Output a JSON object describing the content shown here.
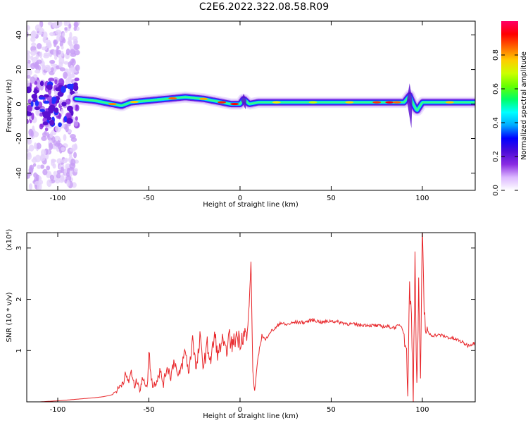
{
  "title": "C2E6.2022.322.08.58.R09",
  "spectrogram": {
    "type": "heatmap",
    "xlabel": "Height of straight line (km)",
    "ylabel": "Frequency (Hz)",
    "xlim": [
      -117,
      129
    ],
    "ylim": [
      -50,
      48
    ],
    "xticks": [
      -100,
      -50,
      0,
      50,
      100
    ],
    "yticks": [
      -40,
      -20,
      0,
      20,
      40
    ],
    "colorbar": {
      "label": "Normalized spectral amplitude",
      "range": [
        0,
        1
      ],
      "ticks": [
        "0.0",
        "0.2",
        "0.4",
        "0.6",
        "0.8"
      ],
      "tick_values": [
        0,
        0.2,
        0.4,
        0.6,
        0.8
      ],
      "colors": [
        "#ffffff",
        "#dcb8ff",
        "#8a2be2",
        "#4b0bd8",
        "#0000ff",
        "#00aaff",
        "#00ffff",
        "#00ff66",
        "#66ff00",
        "#ccff00",
        "#ffcc00",
        "#ff6600",
        "#ff0000",
        "#ff0066"
      ]
    }
  },
  "chart_data": [
    {
      "type": "heatmap",
      "title": "C2E6.2022.322.08.58.R09",
      "xlabel": "Height of straight line (km)",
      "ylabel": "Frequency (Hz)",
      "xlim": [
        -117,
        129
      ],
      "ylim": [
        -50,
        48
      ],
      "colorbar_label": "Normalized spectral amplitude",
      "ridge": {
        "x": [
          -117,
          -105,
          -95,
          -90,
          -80,
          -70,
          -65,
          -60,
          -50,
          -40,
          -30,
          -20,
          -10,
          -5,
          0,
          2,
          5,
          10,
          20,
          50,
          80,
          90,
          93,
          95,
          97,
          100,
          110,
          129
        ],
        "frequency": [
          0,
          0,
          0,
          3,
          2,
          0,
          -1,
          1,
          2,
          3,
          4,
          3,
          1,
          0,
          0,
          3,
          0,
          1,
          1,
          1,
          1,
          1,
          5,
          0,
          -4,
          1,
          1,
          1
        ]
      }
    },
    {
      "type": "line",
      "xlabel": "Height of straight line (km)",
      "ylabel": "SNR (10 * v/v)",
      "y_multiplier": "(x10⁴)",
      "xlim": [
        -117,
        129
      ],
      "ylim": [
        0,
        3.3
      ],
      "xticks": [
        -100,
        -50,
        0,
        50,
        100
      ],
      "yticks": [
        1,
        2,
        3
      ],
      "series": [
        {
          "color": "#e8262a",
          "x": [
            -117,
            -110,
            -100,
            -90,
            -80,
            -75,
            -70,
            -67,
            -65,
            -63,
            -61,
            -60,
            -58,
            -56,
            -55,
            -53,
            -51,
            -50,
            -48,
            -46,
            -44,
            -42,
            -40,
            -38,
            -36,
            -34,
            -32,
            -30,
            -28,
            -26,
            -24,
            -22,
            -20,
            -18,
            -16,
            -14,
            -12,
            -10,
            -8,
            -6,
            -4,
            -2,
            0,
            2,
            4,
            5,
            6,
            7,
            8,
            10,
            12,
            14,
            16,
            18,
            20,
            22,
            25,
            30,
            35,
            40,
            45,
            50,
            55,
            60,
            65,
            70,
            75,
            80,
            85,
            88,
            90,
            91,
            92,
            93,
            94,
            95,
            96,
            97,
            98,
            99,
            100,
            101,
            102,
            103,
            105,
            110,
            115,
            120,
            125,
            129
          ],
          "y": [
            0.0,
            0.0,
            0.02,
            0.05,
            0.08,
            0.1,
            0.14,
            0.25,
            0.35,
            0.5,
            0.4,
            0.6,
            0.3,
            0.45,
            0.2,
            0.5,
            0.25,
            0.95,
            0.3,
            0.4,
            0.6,
            0.35,
            0.7,
            0.5,
            0.85,
            0.45,
            0.7,
            1.0,
            0.55,
            1.3,
            0.6,
            1.2,
            0.7,
            1.1,
            0.8,
            1.3,
            0.9,
            1.2,
            0.95,
            1.25,
            1.1,
            1.3,
            1.2,
            1.35,
            1.25,
            1.9,
            2.7,
            0.6,
            0.2,
            0.9,
            1.3,
            1.2,
            1.35,
            1.4,
            1.45,
            1.55,
            1.5,
            1.55,
            1.55,
            1.6,
            1.55,
            1.58,
            1.55,
            1.52,
            1.5,
            1.5,
            1.48,
            1.47,
            1.45,
            1.5,
            1.35,
            1.1,
            0.3,
            2.3,
            1.6,
            0.1,
            2.9,
            0.2,
            2.2,
            0.5,
            3.2,
            1.8,
            1.4,
            1.35,
            1.3,
            1.3,
            1.25,
            1.2,
            1.1,
            1.15
          ]
        }
      ]
    }
  ]
}
